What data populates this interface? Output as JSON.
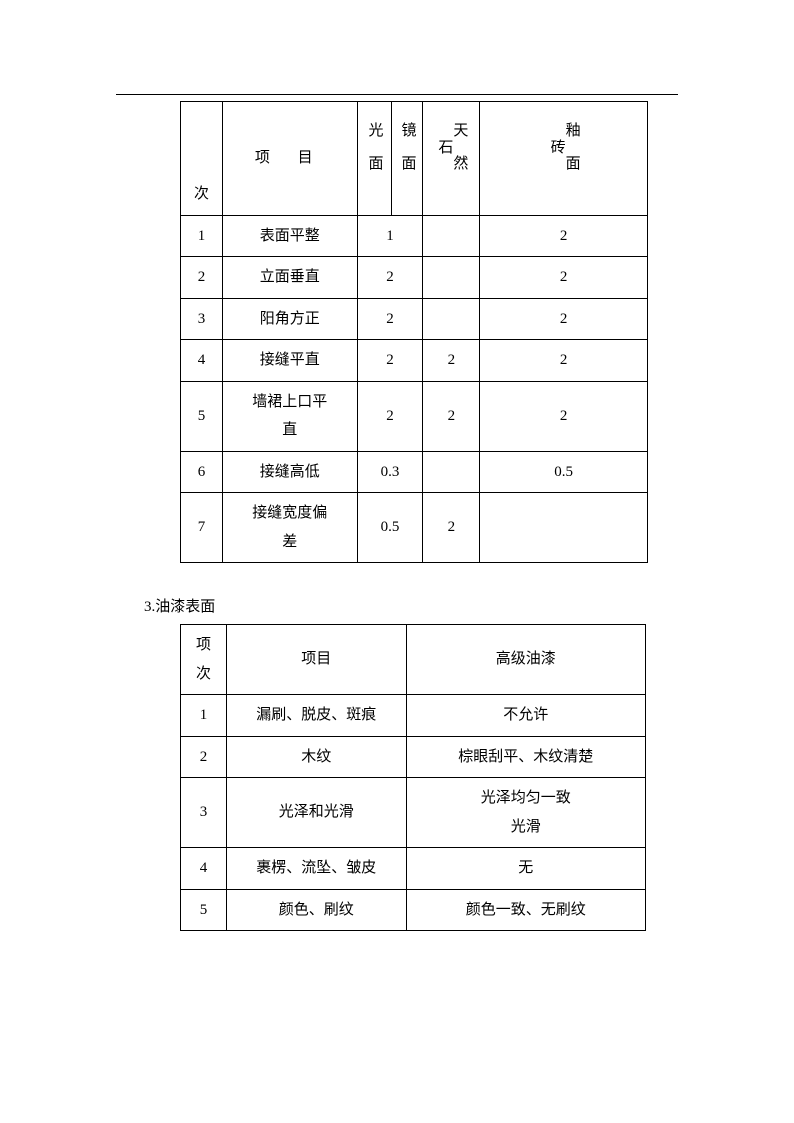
{
  "table1": {
    "header": {
      "idx": "次",
      "name": "项  目",
      "colA": "光面",
      "colB": "镜面",
      "colC": "天然石",
      "colD": "釉面砖"
    },
    "rows": [
      {
        "idx": "1",
        "name": "表面平整",
        "a": "1",
        "b": "",
        "c": "",
        "d": "2"
      },
      {
        "idx": "2",
        "name": "立面垂直",
        "a": "2",
        "b": "",
        "c": "",
        "d": "2"
      },
      {
        "idx": "3",
        "name": "阳角方正",
        "a": "2",
        "b": "",
        "c": "",
        "d": "2"
      },
      {
        "idx": "4",
        "name": "接缝平直",
        "a": "2",
        "b": "",
        "c": "2",
        "d": "2"
      },
      {
        "idx": "5",
        "name_l1": "墙裙上口平",
        "name_l2": "直",
        "a": "2",
        "b": "",
        "c": "2",
        "d": "2"
      },
      {
        "idx": "6",
        "name": "接缝高低",
        "a": "0.3",
        "b": "",
        "c": "",
        "d": "0.5"
      },
      {
        "idx": "7",
        "name_l1": "接缝宽度偏",
        "name_l2": "差",
        "a": "0.5",
        "b": "",
        "c": "2",
        "d": ""
      }
    ]
  },
  "section2_title": "3.油漆表面",
  "table2": {
    "header": {
      "idx_l1": "项",
      "idx_l2": "次",
      "name": "项目",
      "val": "高级油漆"
    },
    "rows": [
      {
        "idx": "1",
        "name": "漏刷、脱皮、斑痕",
        "val": "不允许"
      },
      {
        "idx": "2",
        "name": "木纹",
        "val": "棕眼刮平、木纹清楚"
      },
      {
        "idx": "3",
        "name": "光泽和光滑",
        "val_l1": "光泽均匀一致",
        "val_l2": "光滑"
      },
      {
        "idx": "4",
        "name": "裹楞、流坠、皱皮",
        "val": "无"
      },
      {
        "idx": "5",
        "name": "颜色、刷纹",
        "val": "颜色一致、无刷纹"
      }
    ]
  }
}
